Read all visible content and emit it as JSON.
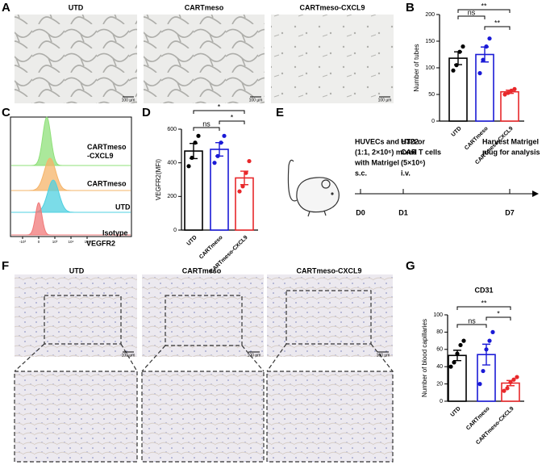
{
  "panels": [
    "A",
    "B",
    "C",
    "D",
    "E",
    "F",
    "G"
  ],
  "scale_bar": "100 µm",
  "panel_a": {
    "titles": [
      "UTD",
      "CARTmeso",
      "CARTmeso-CXCL9"
    ]
  },
  "panel_f": {
    "titles": [
      "UTD",
      "CARTmeso",
      "CARTmeso-CXCL9"
    ]
  },
  "histogram": {
    "labels": [
      [
        "CARTmeso",
        "-CXCL9"
      ],
      [
        "CARTmeso"
      ],
      [
        "UTD"
      ],
      [
        "Isotype"
      ]
    ],
    "colors": [
      "#8fe07a",
      "#f5b46a",
      "#4fd0e0",
      "#f07878"
    ],
    "xticks": [
      "-10³",
      "0",
      "10³",
      "10⁴",
      "10⁵"
    ],
    "xlabel": "VEGFR2"
  },
  "timeline": {
    "days": [
      "D0",
      "D1",
      "D7"
    ],
    "notes": [
      [
        "HUVECs and H322",
        "(1:1, 2×10⁶) mixed",
        "with Matrigel",
        "s.c."
      ],
      [
        "UTD or",
        "CAR T cells",
        "(5×10⁶)",
        "i.v."
      ],
      [
        "Harvest Matrigel",
        "plug for analysis"
      ]
    ]
  },
  "chart_data": [
    {
      "type": "bar",
      "ylabel": "Number of tubes",
      "categories": [
        "UTD",
        "CARTmeso",
        "CARTmeso-CXCL9"
      ],
      "values": [
        118,
        125,
        55
      ],
      "errors": [
        12,
        14,
        3
      ],
      "points": [
        [
          95,
          105,
          130,
          140
        ],
        [
          90,
          115,
          140,
          155
        ],
        [
          50,
          53,
          57,
          60
        ]
      ],
      "colors": [
        "#000000",
        "#1a1ad6",
        "#e8282b"
      ],
      "ylim": [
        0,
        200
      ],
      "yticks": [
        0,
        50,
        100,
        150,
        200
      ],
      "significance": [
        {
          "label": "ns",
          "from": 0,
          "to": 1
        },
        {
          "label": "**",
          "from": 0,
          "to": 2
        },
        {
          "label": "**",
          "from": 1,
          "to": 2
        }
      ]
    },
    {
      "type": "bar",
      "ylabel": "VEGFR2(MFI)",
      "categories": [
        "UTD",
        "CARTmeso",
        "CARTmeso-CXCL9"
      ],
      "values": [
        470,
        480,
        310
      ],
      "errors": [
        45,
        40,
        40
      ],
      "points": [
        [
          380,
          430,
          520,
          560
        ],
        [
          400,
          440,
          520,
          560
        ],
        [
          230,
          260,
          340,
          410
        ]
      ],
      "colors": [
        "#000000",
        "#1a1ad6",
        "#e8282b"
      ],
      "ylim": [
        0,
        600
      ],
      "yticks": [
        0,
        200,
        400,
        600
      ],
      "significance": [
        {
          "label": "ns",
          "from": 0,
          "to": 1
        },
        {
          "label": "*",
          "from": 0,
          "to": 2
        },
        {
          "label": "*",
          "from": 1,
          "to": 2
        }
      ]
    },
    {
      "type": "bar",
      "title": "CD31",
      "ylabel": "Number of blood capillaries",
      "categories": [
        "UTD",
        "CARTmeso",
        "CARTmeso-CXCL9"
      ],
      "values": [
        53,
        54,
        21
      ],
      "errors": [
        6,
        12,
        3
      ],
      "points": [
        [
          40,
          45,
          55,
          65,
          70
        ],
        [
          20,
          35,
          60,
          70,
          80
        ],
        [
          12,
          15,
          22,
          25,
          28
        ]
      ],
      "colors": [
        "#000000",
        "#1a1ad6",
        "#e8282b"
      ],
      "ylim": [
        0,
        100
      ],
      "yticks": [
        0,
        20,
        40,
        60,
        80,
        100
      ],
      "significance": [
        {
          "label": "ns",
          "from": 0,
          "to": 1
        },
        {
          "label": "**",
          "from": 0,
          "to": 2
        },
        {
          "label": "*",
          "from": 1,
          "to": 2
        }
      ]
    }
  ]
}
